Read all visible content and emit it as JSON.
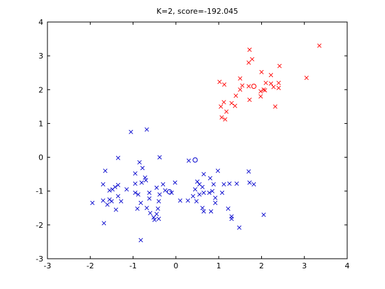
{
  "chart_data": {
    "type": "scatter",
    "title": "K=2, score=-192.045",
    "xlabel": "",
    "ylabel": "",
    "xlim": [
      -3,
      4
    ],
    "ylim": [
      -3,
      4
    ],
    "xticks": [
      -3,
      -2,
      -1,
      0,
      1,
      2,
      3,
      4
    ],
    "yticks": [
      -3,
      -2,
      -1,
      0,
      1,
      2,
      3,
      4
    ],
    "grid": false,
    "series": [
      {
        "color": "#ff0000",
        "marker": "x",
        "points": [
          [
            1.72,
            3.18
          ],
          [
            3.35,
            3.3
          ],
          [
            1.78,
            2.9
          ],
          [
            1.7,
            2.8
          ],
          [
            2.42,
            2.7
          ],
          [
            2.0,
            2.52
          ],
          [
            2.22,
            2.43
          ],
          [
            1.5,
            2.33
          ],
          [
            1.02,
            2.23
          ],
          [
            2.1,
            2.2
          ],
          [
            2.4,
            2.2
          ],
          [
            2.22,
            2.18
          ],
          [
            1.13,
            2.15
          ],
          [
            1.55,
            2.12
          ],
          [
            1.7,
            2.1
          ],
          [
            2.28,
            2.08
          ],
          [
            2.4,
            2.05
          ],
          [
            1.5,
            2.0
          ],
          [
            2.05,
            2.0
          ],
          [
            1.98,
            1.95
          ],
          [
            1.4,
            1.82
          ],
          [
            1.98,
            1.8
          ],
          [
            1.72,
            1.7
          ],
          [
            1.3,
            1.6
          ],
          [
            1.12,
            1.63
          ],
          [
            1.05,
            1.5
          ],
          [
            1.38,
            1.52
          ],
          [
            2.32,
            1.5
          ],
          [
            1.18,
            1.35
          ],
          [
            1.07,
            1.18
          ],
          [
            1.15,
            1.12
          ],
          [
            3.05,
            2.35
          ],
          [
            2.08,
            1.98
          ]
        ]
      },
      {
        "color": "#0000cc",
        "marker": "x",
        "points": [
          [
            -0.68,
            0.82
          ],
          [
            -1.05,
            0.75
          ],
          [
            -1.35,
            -0.02
          ],
          [
            -0.38,
            0.0
          ],
          [
            -0.85,
            -0.15
          ],
          [
            -0.78,
            -0.32
          ],
          [
            0.3,
            -0.1
          ],
          [
            -1.65,
            -0.4
          ],
          [
            -0.95,
            -0.48
          ],
          [
            -0.72,
            -0.6
          ],
          [
            -0.7,
            -0.68
          ],
          [
            -0.8,
            -0.75
          ],
          [
            -0.95,
            -0.78
          ],
          [
            -1.7,
            -0.8
          ],
          [
            -1.35,
            -0.82
          ],
          [
            -1.42,
            -0.88
          ],
          [
            -1.48,
            -0.95
          ],
          [
            -1.55,
            -0.98
          ],
          [
            -1.15,
            -0.95
          ],
          [
            -0.45,
            -0.9
          ],
          [
            -0.3,
            -0.8
          ],
          [
            -0.25,
            -0.98
          ],
          [
            -0.1,
            -1.05
          ],
          [
            -0.02,
            -0.75
          ],
          [
            -0.95,
            -1.05
          ],
          [
            -0.88,
            -1.1
          ],
          [
            -0.62,
            -1.05
          ],
          [
            -0.38,
            -1.1
          ],
          [
            -0.62,
            -1.22
          ],
          [
            -1.7,
            -1.28
          ],
          [
            -1.55,
            -1.25
          ],
          [
            -1.5,
            -1.3
          ],
          [
            -1.35,
            -1.15
          ],
          [
            -1.28,
            -1.3
          ],
          [
            -1.95,
            -1.35
          ],
          [
            -1.6,
            -1.4
          ],
          [
            -0.82,
            -1.35
          ],
          [
            -0.4,
            -1.3
          ],
          [
            -1.4,
            -1.55
          ],
          [
            -0.9,
            -1.52
          ],
          [
            -0.68,
            -1.5
          ],
          [
            -0.42,
            -1.52
          ],
          [
            -0.6,
            -1.65
          ],
          [
            -0.45,
            -1.68
          ],
          [
            -0.52,
            -1.78
          ],
          [
            -0.5,
            -1.85
          ],
          [
            -0.4,
            -1.82
          ],
          [
            -1.68,
            -1.95
          ],
          [
            -0.82,
            -2.45
          ],
          [
            0.5,
            -0.72
          ],
          [
            0.55,
            -0.8
          ],
          [
            0.65,
            -0.5
          ],
          [
            0.8,
            -0.62
          ],
          [
            0.62,
            -0.88
          ],
          [
            0.88,
            -0.8
          ],
          [
            0.98,
            -0.4
          ],
          [
            1.12,
            -0.8
          ],
          [
            1.25,
            -0.78
          ],
          [
            1.42,
            -0.78
          ],
          [
            1.7,
            -0.42
          ],
          [
            1.72,
            -0.75
          ],
          [
            1.82,
            -0.8
          ],
          [
            0.85,
            -1.0
          ],
          [
            0.78,
            -1.05
          ],
          [
            0.65,
            -1.05
          ],
          [
            0.55,
            -1.1
          ],
          [
            0.4,
            -1.15
          ],
          [
            0.1,
            -1.28
          ],
          [
            0.28,
            -1.28
          ],
          [
            0.48,
            -1.3
          ],
          [
            0.92,
            -1.2
          ],
          [
            0.92,
            -1.35
          ],
          [
            0.62,
            -1.5
          ],
          [
            0.65,
            -1.6
          ],
          [
            0.82,
            -1.6
          ],
          [
            1.22,
            -1.52
          ],
          [
            1.3,
            -1.75
          ],
          [
            1.3,
            -1.82
          ],
          [
            1.48,
            -2.08
          ],
          [
            2.05,
            -1.7
          ],
          [
            1.08,
            -1.05
          ],
          [
            0.45,
            -0.95
          ]
        ]
      }
    ],
    "centroids": [
      {
        "color": "#ff0000",
        "marker": "o",
        "x": 1.82,
        "y": 2.1
      },
      {
        "color": "#0000cc",
        "marker": "o",
        "x": 0.45,
        "y": -0.08
      },
      {
        "color": "#0000cc",
        "marker": "o",
        "x": -0.15,
        "y": -1.02
      }
    ]
  }
}
